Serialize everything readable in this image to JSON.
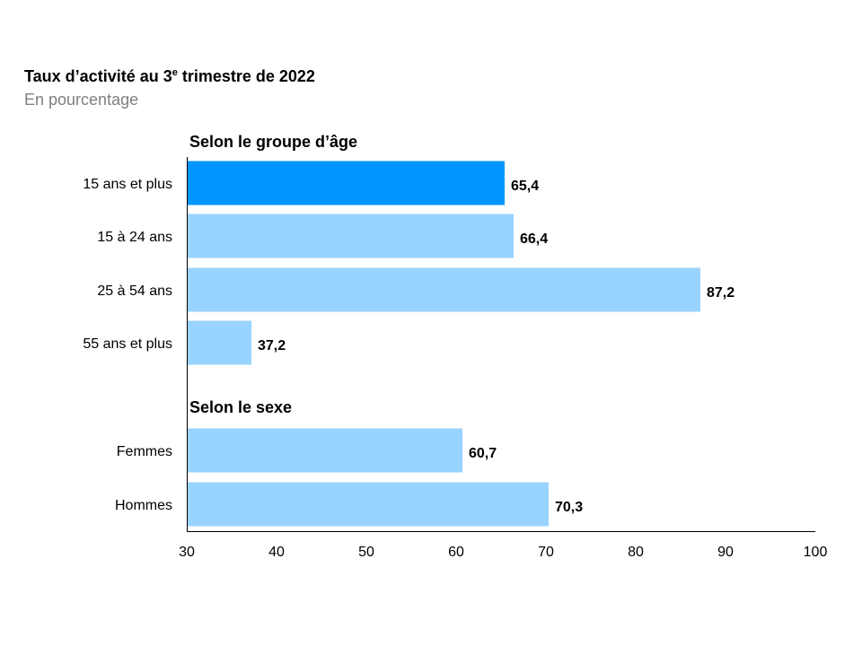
{
  "title_main": "Taux d’activité au 3",
  "title_sup": "e",
  "title_rest": " trimestre de 2022",
  "subtitle": "En pourcentage",
  "colors": {
    "highlight": "#0096ff",
    "bar": "#99d3ff"
  },
  "chart_data": {
    "type": "bar",
    "orientation": "horizontal",
    "title": "Taux d’activité au 3e trimestre de 2022",
    "subtitle": "En pourcentage",
    "xlim": [
      30,
      100
    ],
    "xticks": [
      30,
      40,
      50,
      60,
      70,
      80,
      90,
      100
    ],
    "grid": false,
    "groups": [
      {
        "label": "Selon le groupe d’âge",
        "categories": [
          "15 ans et plus",
          "15 à 24 ans",
          "25 à 54 ans",
          "55 ans et plus"
        ],
        "values": [
          65.4,
          66.4,
          87.2,
          37.2
        ],
        "labels": [
          "65,4",
          "66,4",
          "87,2",
          "37,2"
        ]
      },
      {
        "label": "Selon le sexe",
        "categories": [
          "Femmes",
          "Hommes"
        ],
        "values": [
          60.7,
          70.3
        ],
        "labels": [
          "60,7",
          "70,3"
        ]
      }
    ],
    "highlighted": "15 ans et plus"
  }
}
